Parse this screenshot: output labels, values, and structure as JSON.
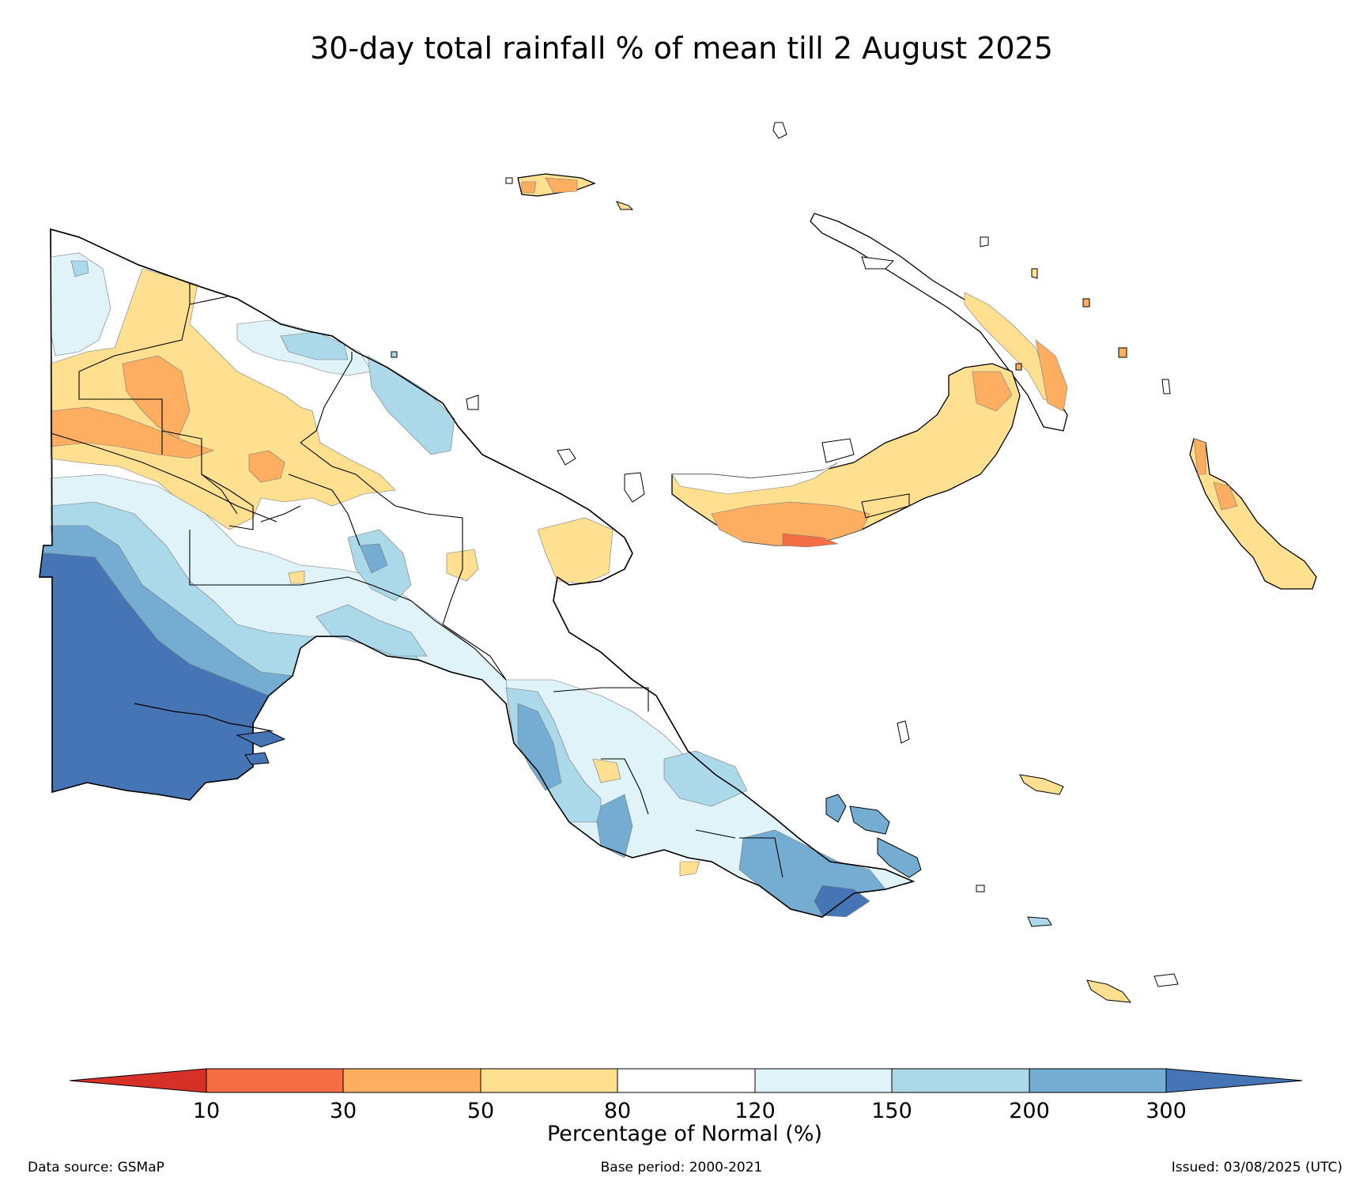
{
  "title": "30-day total rainfall % of mean till 2 August 2025",
  "colors": {
    "below_10": "#d73027",
    "10_30": "#f46d43",
    "30_50": "#fdae61",
    "50_80": "#fee090",
    "80_120": "#ffffff",
    "120_150": "#e0f3f8",
    "150_200": "#abd9e9",
    "200_300": "#74add1",
    "above_300": "#4575b4",
    "boundary": "#000000",
    "contour": "#555555"
  },
  "colorbar": {
    "label": "Percentage of Normal (%)",
    "ticks": [
      "10",
      "30",
      "50",
      "80",
      "120",
      "150",
      "200",
      "300"
    ]
  },
  "footer": {
    "data_source": "Data source: GSMaP",
    "base_period": "Base period: 2000-2021",
    "issued": "Issued: 03/08/2025 (UTC)"
  }
}
